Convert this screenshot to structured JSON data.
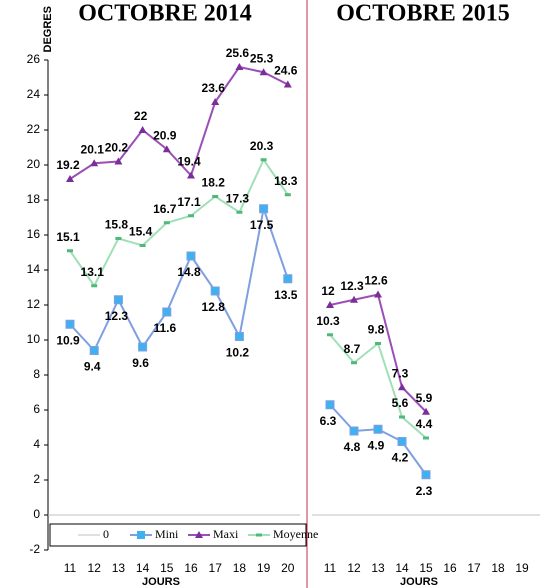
{
  "chart_data": [
    {
      "type": "line",
      "title": "OCTOBRE 2014",
      "y_label": "DEGRES",
      "x_label": "JOURS",
      "categories": [
        "11",
        "12",
        "13",
        "14",
        "15",
        "16",
        "17",
        "18",
        "19",
        "20"
      ],
      "ylim": [
        -2,
        26
      ],
      "yticks": [
        -2,
        0,
        2,
        4,
        6,
        8,
        10,
        12,
        14,
        16,
        18,
        20,
        22,
        24,
        26
      ],
      "legend": "bottom",
      "series": [
        {
          "name": "0",
          "color": "#c0c0c0",
          "values": [
            0,
            0,
            0,
            0,
            0,
            0,
            0,
            0,
            0,
            0
          ]
        },
        {
          "name": "Mini",
          "color": "#7f9fe0",
          "values": [
            10.9,
            9.4,
            12.3,
            9.6,
            11.6,
            14.8,
            12.8,
            10.2,
            17.5,
            13.5
          ]
        },
        {
          "name": "Maxi",
          "color": "#9b4fb5",
          "values": [
            19.2,
            20.1,
            20.2,
            22,
            20.9,
            19.4,
            23.6,
            25.6,
            25.3,
            24.6
          ]
        },
        {
          "name": "Moyenne",
          "color": "#9fe0b8",
          "values": [
            15.1,
            13.1,
            15.8,
            15.4,
            16.7,
            17.1,
            18.2,
            17.3,
            20.3,
            18.3
          ]
        }
      ]
    },
    {
      "type": "line",
      "title": "OCTOBRE 2015",
      "x_label": "JOURS",
      "categories": [
        "11",
        "12",
        "13",
        "14",
        "15",
        "16",
        "17",
        "18",
        "19"
      ],
      "ylim": [
        -2,
        26
      ],
      "series": [
        {
          "name": "0",
          "color": "#c0c0c0",
          "values": [
            0,
            0,
            0,
            0,
            0,
            0,
            0,
            0,
            0
          ]
        },
        {
          "name": "Mini",
          "color": "#7f9fe0",
          "values": [
            6.3,
            4.8,
            4.9,
            4.2,
            2.3,
            null,
            null,
            null,
            null
          ]
        },
        {
          "name": "Maxi",
          "color": "#9b4fb5",
          "values": [
            12,
            12.3,
            12.6,
            7.3,
            5.9,
            null,
            null,
            null,
            null
          ]
        },
        {
          "name": "Moyenne",
          "color": "#9fe0b8",
          "values": [
            10.3,
            8.7,
            9.8,
            5.6,
            4.4,
            null,
            null,
            null,
            null
          ]
        }
      ]
    }
  ]
}
